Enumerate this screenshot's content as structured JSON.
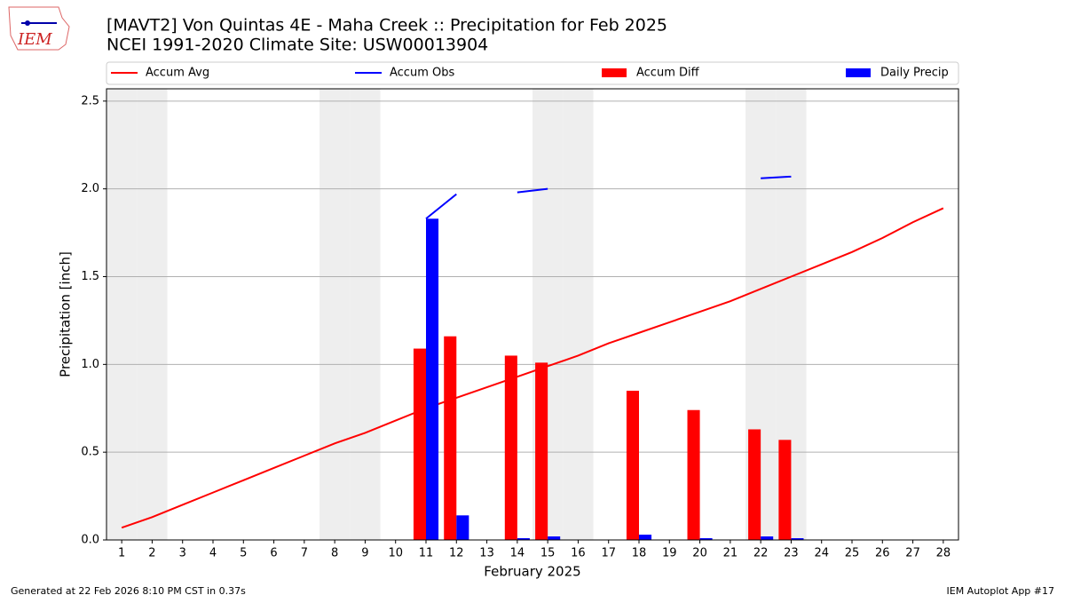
{
  "logo_text": "IEM",
  "footer_left": "Generated at 22 Feb 2026 8:10 PM CST in 0.37s",
  "footer_right": "IEM Autoplot App #17",
  "chart_data": {
    "type": "bar_line",
    "title": "[MAVT2] Von Quintas 4E - Maha Creek :: Precipitation for Feb 2025",
    "subtitle": "NCEI 1991-2020 Climate Site: USW00013904",
    "x_label": "February 2025",
    "y_label": "Precipitation [inch]",
    "categories": [
      "1",
      "2",
      "3",
      "4",
      "5",
      "6",
      "7",
      "8",
      "9",
      "10",
      "11",
      "12",
      "13",
      "14",
      "15",
      "16",
      "17",
      "18",
      "19",
      "20",
      "21",
      "22",
      "23",
      "24",
      "25",
      "26",
      "27",
      "28"
    ],
    "shaded_days": [
      1,
      2,
      8,
      9,
      15,
      16,
      22,
      23
    ],
    "ylim": [
      0,
      2.57
    ],
    "yticks": [
      {
        "value": 0,
        "label": "0.0"
      },
      0.5,
      {
        "value": 1,
        "label": "1.0"
      },
      1.5,
      {
        "value": 2,
        "label": "2.0"
      },
      2.5
    ],
    "grid": true,
    "series": [
      {
        "name": "Accum Avg",
        "kind": "line",
        "color": "#ff0000",
        "values": [
          0.07,
          0.13,
          0.2,
          0.27,
          0.34,
          0.41,
          0.48,
          0.55,
          0.61,
          0.68,
          0.75,
          0.81,
          0.87,
          0.93,
          0.99,
          1.05,
          1.12,
          1.18,
          1.24,
          1.3,
          1.36,
          1.43,
          1.5,
          1.57,
          1.64,
          1.72,
          1.81,
          1.89
        ]
      },
      {
        "name": "Accum Obs",
        "kind": "line",
        "color": "#0000ff",
        "values": [
          null,
          null,
          null,
          null,
          null,
          null,
          null,
          null,
          null,
          null,
          1.83,
          1.97,
          null,
          1.98,
          2.0,
          null,
          null,
          null,
          null,
          null,
          null,
          2.06,
          2.07,
          null,
          null,
          null,
          null,
          null
        ]
      },
      {
        "name": "Accum Diff",
        "kind": "bar",
        "offset": -1,
        "color": "#ff0000",
        "values": [
          null,
          null,
          null,
          null,
          null,
          null,
          null,
          null,
          null,
          null,
          1.09,
          1.16,
          null,
          1.05,
          1.01,
          null,
          null,
          0.85,
          null,
          0.74,
          null,
          0.63,
          0.57,
          null,
          null,
          null,
          null,
          null
        ]
      },
      {
        "name": "Daily Precip",
        "kind": "bar",
        "offset": 0,
        "color": "#0000ff",
        "values": [
          0,
          0,
          0,
          0,
          0,
          0,
          0,
          0,
          0,
          0,
          1.83,
          0.14,
          0,
          0.01,
          0.02,
          0,
          0,
          0.03,
          0,
          0.01,
          0,
          0.02,
          0.01,
          0,
          0,
          0,
          0,
          0
        ]
      }
    ]
  }
}
